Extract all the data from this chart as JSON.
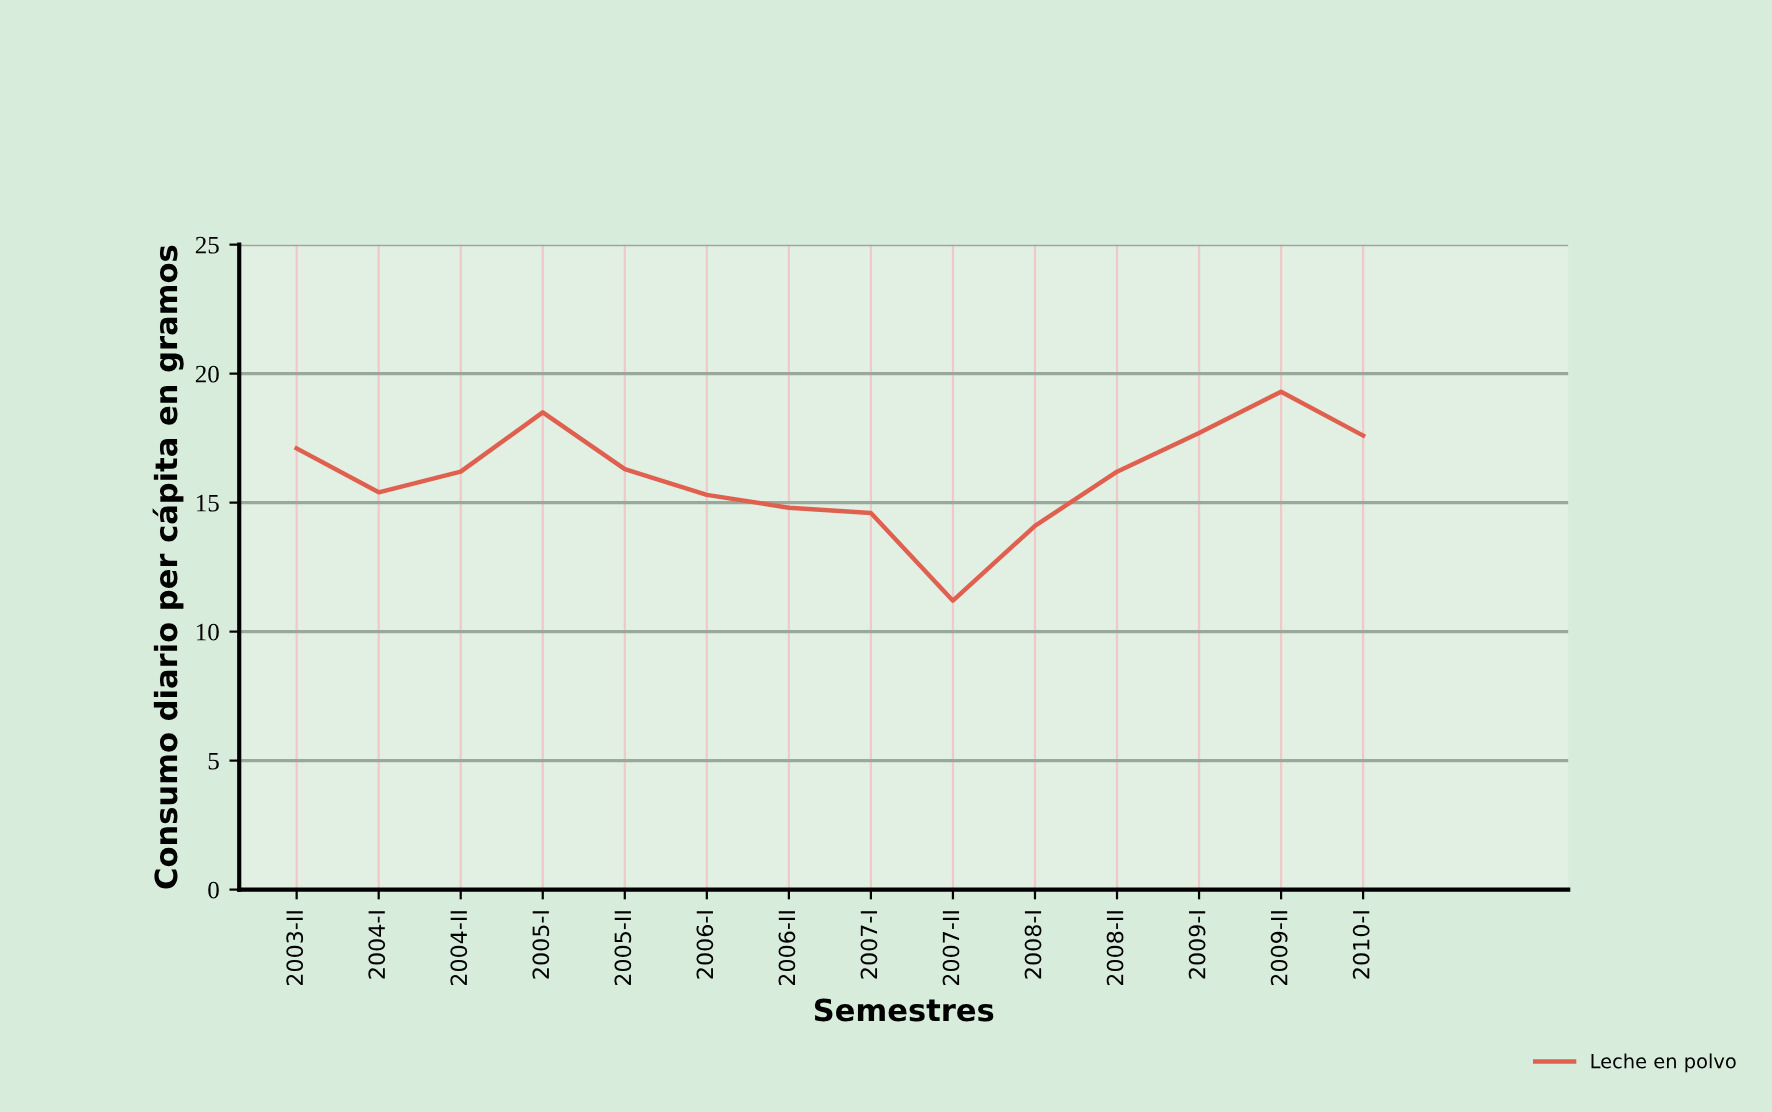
{
  "chart_data": {
    "type": "line",
    "xlabel": "Semestres",
    "ylabel": "Consumo diario per cápita en gramos",
    "categories": [
      "2003-II",
      "2004-I",
      "2004-II",
      "2005-I",
      "2005-II",
      "2006-I",
      "2006-II",
      "2007-I",
      "2007-II",
      "2008-I",
      "2008-II",
      "2009-I",
      "2009-II",
      "2010-I"
    ],
    "series": [
      {
        "name": "Leche en polvo",
        "color": "#e0604f",
        "values": [
          17.1,
          15.4,
          16.2,
          18.5,
          16.3,
          15.3,
          14.8,
          14.6,
          11.2,
          14.1,
          16.2,
          17.7,
          19.3,
          17.6
        ]
      }
    ],
    "ylim": [
      0,
      25
    ],
    "yticks": [
      0,
      5,
      10,
      15,
      20,
      25
    ],
    "grid": true,
    "legend": "bottom right",
    "marker": "none",
    "line_style": "solid"
  }
}
